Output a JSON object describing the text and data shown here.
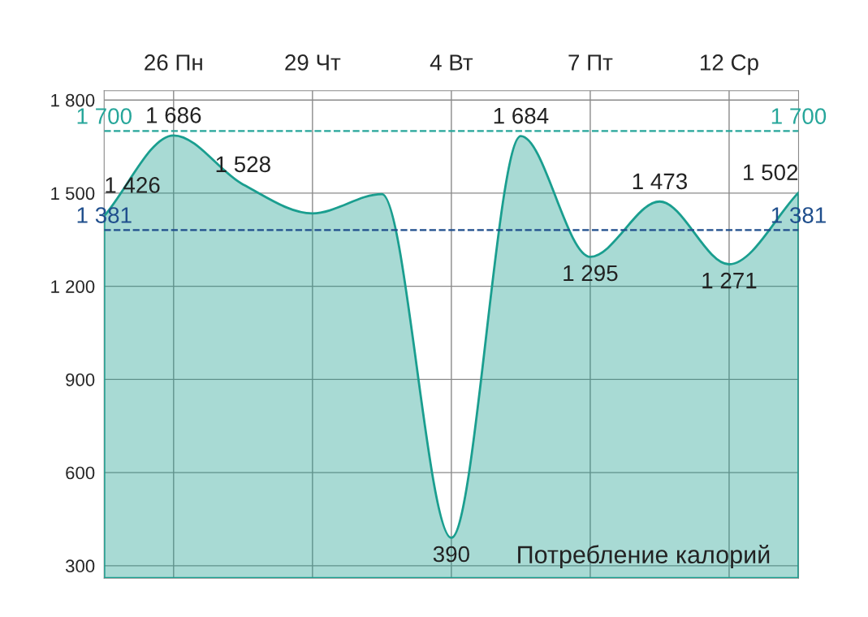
{
  "chart_data": {
    "type": "area",
    "categories": [
      null,
      "26 Пн",
      null,
      "29 Чт",
      null,
      "4 Вт",
      null,
      "7 Пт",
      null,
      "12 Ср",
      null
    ],
    "series": [
      {
        "color": "#1a9e8f",
        "values": [
          1426,
          1686,
          1528,
          1435,
          1497,
          390,
          1684,
          1295,
          1473,
          1271,
          1502
        ],
        "value_labels": [
          "1 426",
          "1 686",
          "1 528",
          null,
          null,
          "390",
          "1 684",
          "1 295",
          "1 473",
          "1 271",
          "1 502"
        ]
      }
    ],
    "ylim": [
      260,
      1830
    ],
    "yticks": [
      {
        "value": 300,
        "label": "300"
      },
      {
        "value": 600,
        "label": "600"
      },
      {
        "value": 900,
        "label": "900"
      },
      {
        "value": 1200,
        "label": "1 200"
      },
      {
        "value": 1500,
        "label": "1 500"
      },
      {
        "value": 1800,
        "label": "1 800"
      }
    ],
    "ref_lines": [
      {
        "axis": "y",
        "value": 1700,
        "label": "1 700",
        "color": "#26a69a",
        "line_style": "dashed"
      },
      {
        "axis": "y",
        "value": 1381,
        "label": "1 381",
        "color": "#1f4e8c",
        "line_style": "dashed"
      }
    ],
    "annotations": [
      "Потребление калорий"
    ],
    "grid": true
  }
}
